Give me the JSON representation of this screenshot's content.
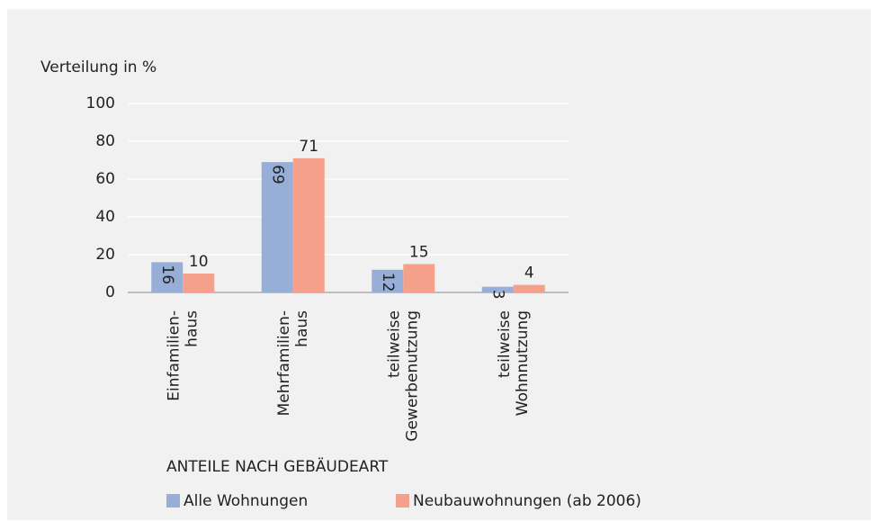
{
  "chart_data": {
    "type": "bar",
    "ylabel": "Verteilung in %",
    "xlabel": "ANTEILE NACH GEBÄUDEART",
    "categories": [
      "Einfamilien-\nhaus",
      "Mehrfamilien-\nhaus",
      "teilweise\nGewerbenutzung",
      "teilweise\nWohnnutzung"
    ],
    "series": [
      {
        "name": "Alle Wohnungen",
        "color": "#97aed6",
        "values": [
          16,
          69,
          12,
          3
        ]
      },
      {
        "name": "Neubauwohnungen (ab 2006)",
        "color": "#f4a08a",
        "values": [
          10,
          71,
          15,
          4
        ]
      }
    ],
    "ylim": [
      0,
      100
    ],
    "yticks": [
      0,
      20,
      40,
      60,
      80,
      100
    ],
    "grid": true
  }
}
